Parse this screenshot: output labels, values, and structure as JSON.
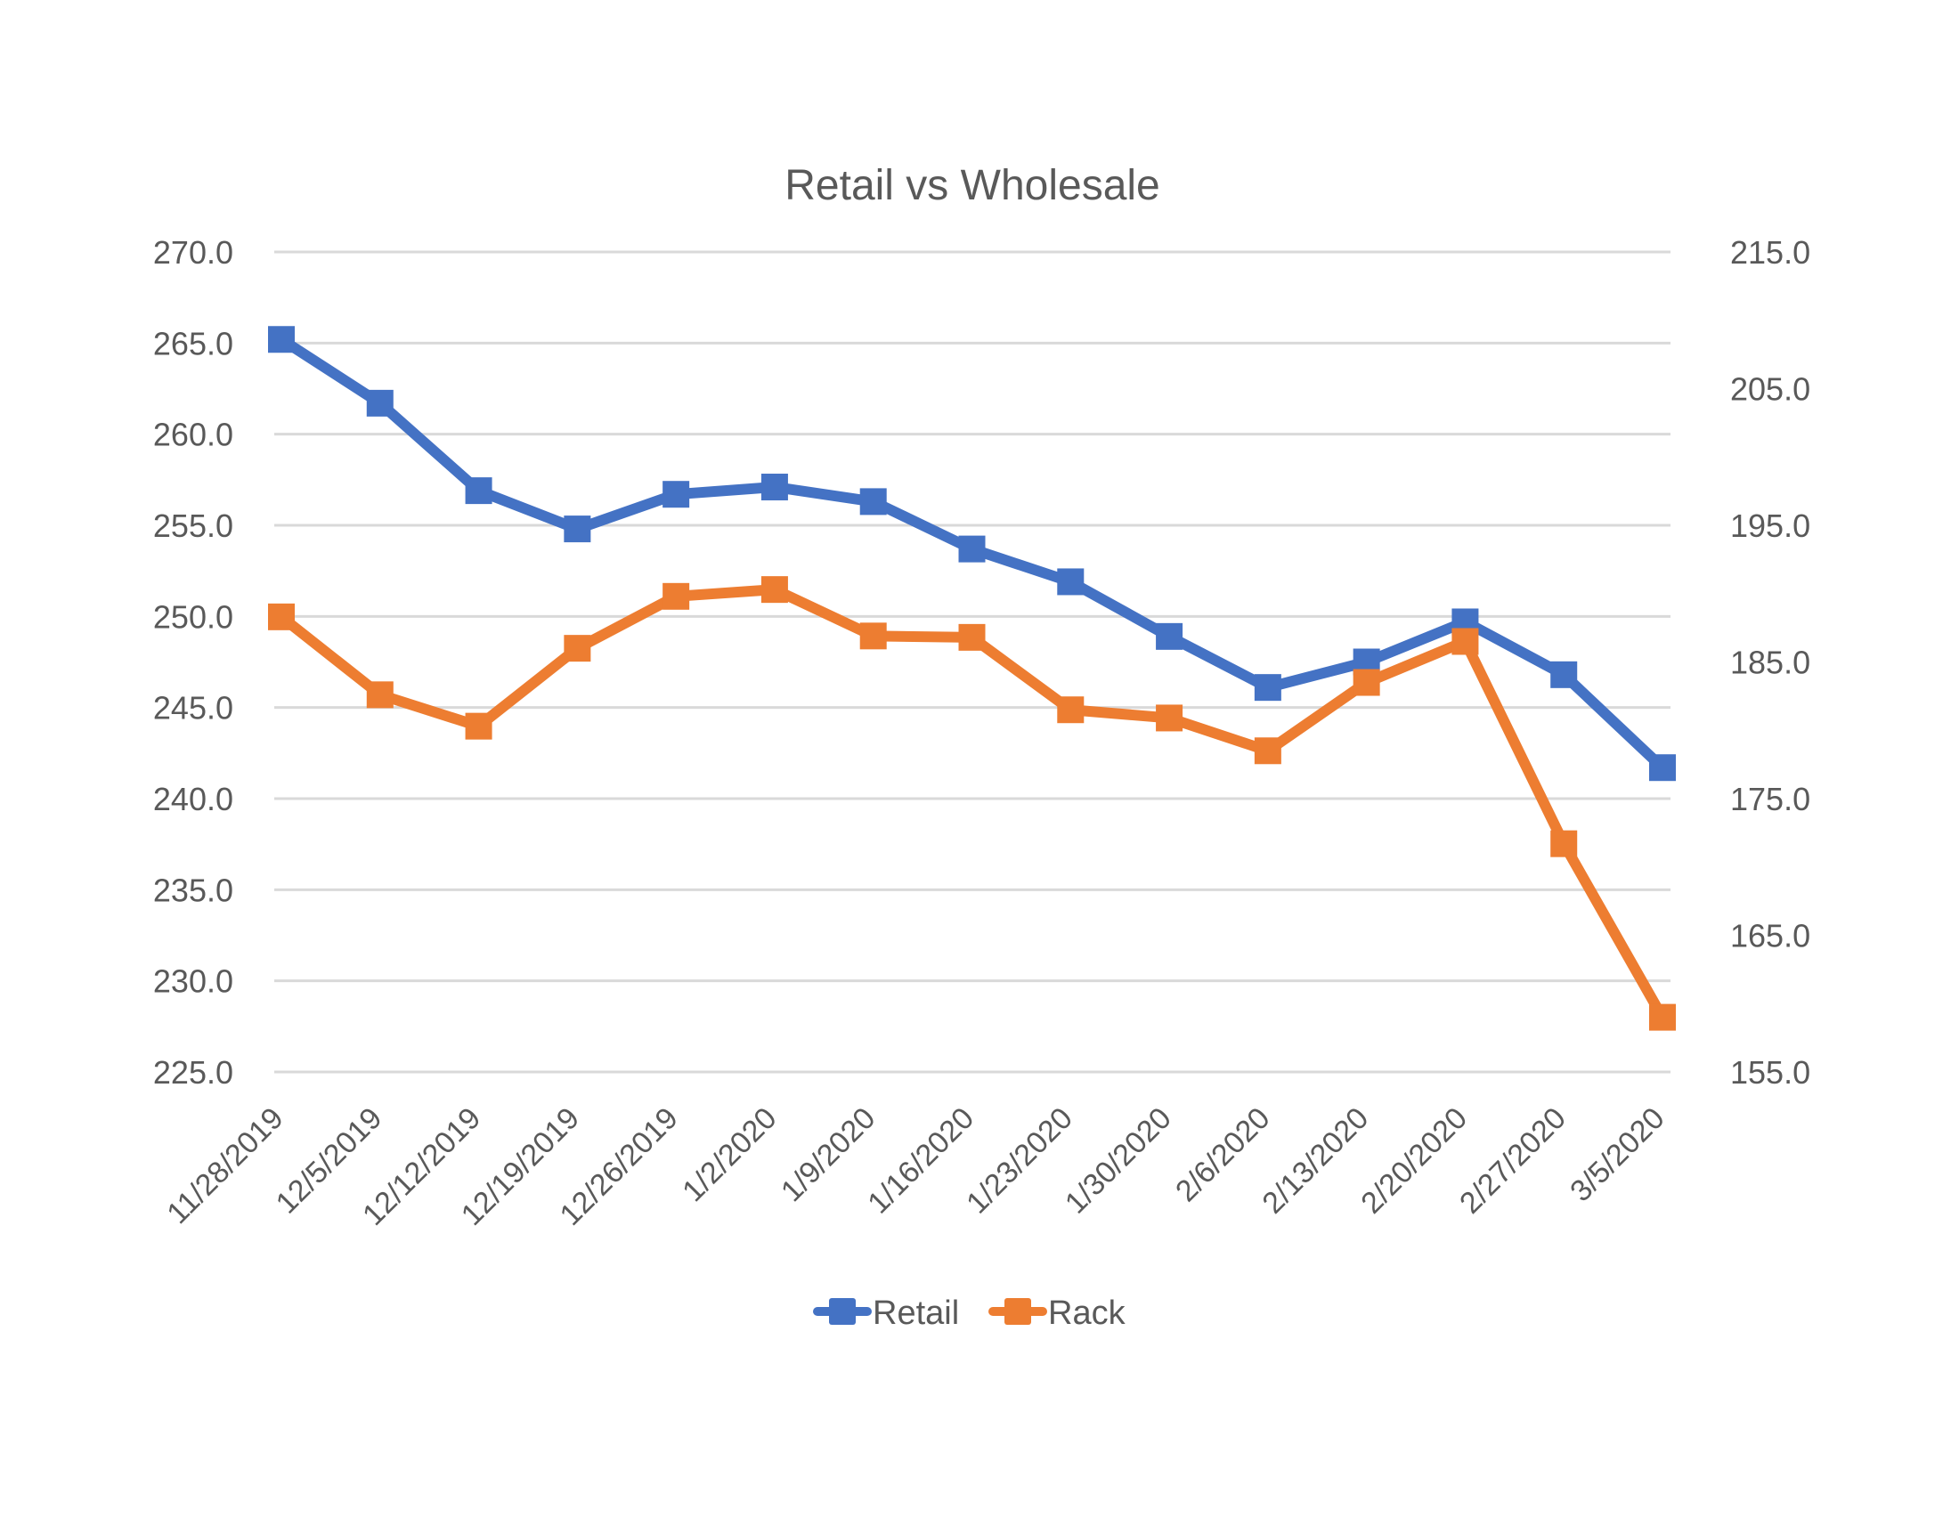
{
  "chart_data": {
    "type": "line",
    "title": "Retail vs Wholesale",
    "xlabel": "",
    "ylabel": "",
    "y2label": "",
    "categories": [
      "11/28/2019",
      "12/5/2019",
      "12/12/2019",
      "12/19/2019",
      "12/26/2019",
      "1/2/2020",
      "1/9/2020",
      "1/16/2020",
      "1/23/2020",
      "1/30/2020",
      "2/6/2020",
      "2/13/2020",
      "2/20/2020",
      "2/27/2020",
      "3/5/2020"
    ],
    "series": [
      {
        "name": "Retail",
        "axis": "left",
        "color": "#4472c4",
        "marker": "square",
        "values": [
          265.2,
          261.7,
          256.9,
          254.8,
          256.7,
          257.1,
          256.3,
          253.7,
          251.9,
          248.9,
          246.1,
          247.5,
          249.7,
          246.8,
          241.7
        ]
      },
      {
        "name": "Rack",
        "axis": "right",
        "color": "#ed7d31",
        "marker": "square",
        "values": [
          188.3,
          182.6,
          180.3,
          186.0,
          189.8,
          190.3,
          186.9,
          186.8,
          181.5,
          180.9,
          178.5,
          183.5,
          186.5,
          171.7,
          159.0
        ]
      }
    ],
    "ylim": [
      225.0,
      270.0
    ],
    "y_ticks": [
      "270.0",
      "265.0",
      "260.0",
      "255.0",
      "250.0",
      "245.0",
      "240.0",
      "235.0",
      "230.0",
      "225.0"
    ],
    "y2lim": [
      155.0,
      215.0
    ],
    "y2_ticks": [
      "215.0",
      "205.0",
      "195.0",
      "185.0",
      "175.0",
      "165.0",
      "155.0"
    ],
    "grid": true,
    "legend_position": "bottom",
    "x_tick_rotation": -45
  },
  "legend": {
    "items": [
      {
        "label": "Retail",
        "color": "#4472c4"
      },
      {
        "label": "Rack",
        "color": "#ed7d31"
      }
    ]
  },
  "colors": {
    "text": "#595959",
    "grid": "#d9d9d9",
    "background": "#ffffff"
  }
}
